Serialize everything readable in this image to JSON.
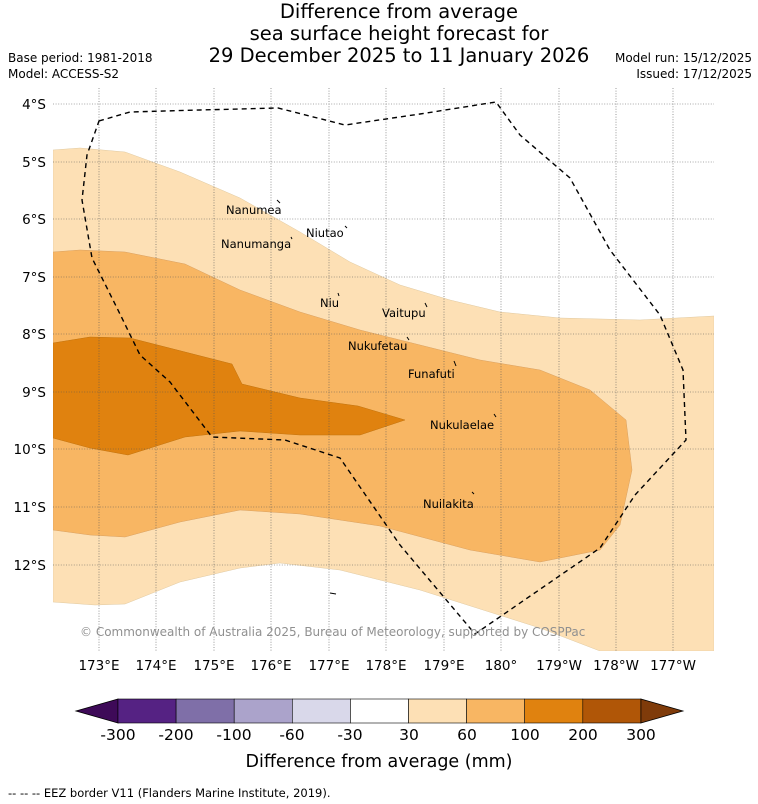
{
  "title": {
    "line1": "Difference from average",
    "line2": "sea surface height forecast for",
    "line3": "29 December 2025 to 11 January 2026"
  },
  "meta": {
    "base_period": "Base period: 1981-2018",
    "model": "Model: ACCESS-S2",
    "model_run": "Model run: 15/12/2025",
    "issued": "Issued: 17/12/2025"
  },
  "map": {
    "lat_ticks": [
      "4°S",
      "5°S",
      "6°S",
      "7°S",
      "8°S",
      "9°S",
      "10°S",
      "11°S",
      "12°S"
    ],
    "lon_ticks": [
      "173°E",
      "174°E",
      "175°E",
      "176°E",
      "177°E",
      "178°E",
      "179°E",
      "180°",
      "179°W",
      "178°W",
      "177°W"
    ],
    "islands": [
      {
        "name": "Nanumea"
      },
      {
        "name": "Nanumanga"
      },
      {
        "name": "Niutao"
      },
      {
        "name": "Niu"
      },
      {
        "name": "Vaitupu"
      },
      {
        "name": "Nukufetau"
      },
      {
        "name": "Funafuti"
      },
      {
        "name": "Nukulaelae"
      },
      {
        "name": "Nuilakita"
      }
    ],
    "copyright": "© Commonwealth of Australia 2025, Bureau of Meteorology, supported by COSPPac"
  },
  "colorbar": {
    "colors": [
      "#3e0a58",
      "#552283",
      "#7f6fa8",
      "#aba3cb",
      "#d9d8ea",
      "#ffffff",
      "#fde0b5",
      "#f8b663",
      "#e0820f",
      "#b05607",
      "#7f3b0a"
    ],
    "ticks": [
      "-300",
      "-200",
      "-100",
      "-60",
      "-30",
      "30",
      "60",
      "100",
      "200",
      "300"
    ],
    "label": "Difference from average (mm)"
  },
  "footnote": "-- -- -- EEZ border V11 (Flanders Marine Institute, 2019)."
}
